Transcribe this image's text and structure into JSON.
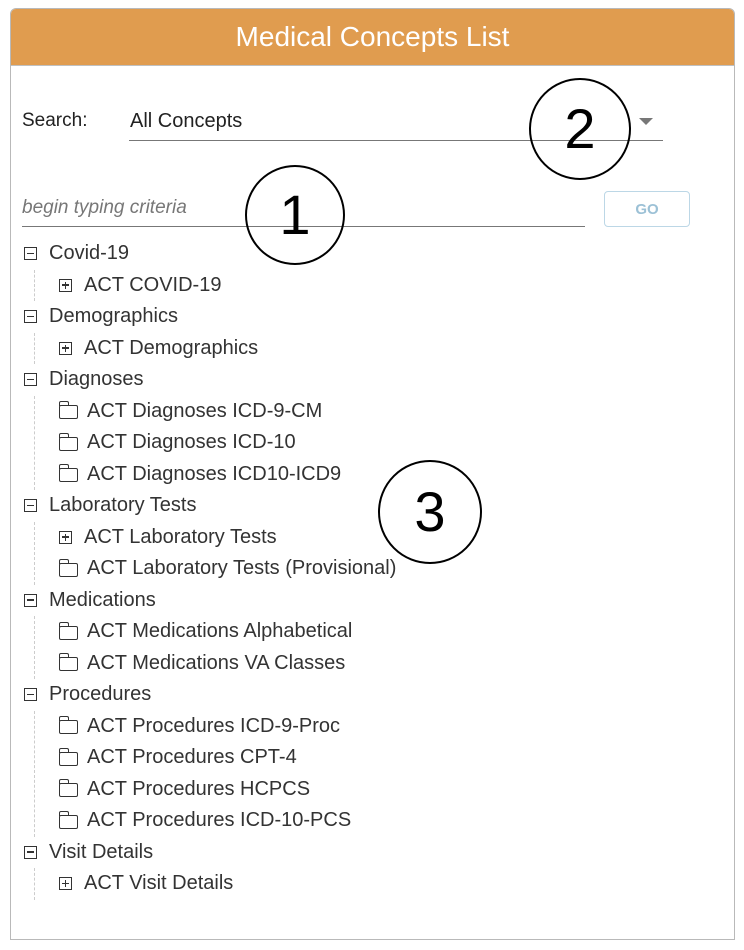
{
  "header": {
    "title": "Medical Concepts List"
  },
  "search": {
    "label": "Search:",
    "selected": "All Concepts",
    "placeholder": "begin typing criteria",
    "go_label": "GO"
  },
  "tree": [
    {
      "label": "Covid-19",
      "children": [
        {
          "label": "ACT COVID-19",
          "icon": "plus"
        }
      ]
    },
    {
      "label": "Demographics",
      "children": [
        {
          "label": "ACT Demographics",
          "icon": "plus"
        }
      ]
    },
    {
      "label": "Diagnoses",
      "children": [
        {
          "label": "ACT Diagnoses ICD-9-CM",
          "icon": "folder"
        },
        {
          "label": "ACT Diagnoses ICD-10",
          "icon": "folder"
        },
        {
          "label": "ACT Diagnoses ICD10-ICD9",
          "icon": "folder"
        }
      ]
    },
    {
      "label": "Laboratory Tests",
      "children": [
        {
          "label": "ACT Laboratory Tests",
          "icon": "plus"
        },
        {
          "label": "ACT Laboratory Tests (Provisional)",
          "icon": "folder"
        }
      ]
    },
    {
      "label": "Medications",
      "children": [
        {
          "label": "ACT Medications Alphabetical",
          "icon": "folder"
        },
        {
          "label": "ACT Medications VA Classes",
          "icon": "folder"
        }
      ]
    },
    {
      "label": "Procedures",
      "children": [
        {
          "label": "ACT Procedures ICD-9-Proc",
          "icon": "folder"
        },
        {
          "label": "ACT Procedures CPT-4",
          "icon": "folder"
        },
        {
          "label": "ACT Procedures HCPCS",
          "icon": "folder"
        },
        {
          "label": "ACT Procedures ICD-10-PCS",
          "icon": "folder"
        }
      ]
    },
    {
      "label": "Visit Details",
      "children": [
        {
          "label": "ACT Visit Details",
          "icon": "plus"
        }
      ]
    }
  ],
  "annotations": [
    "1",
    "2",
    "3"
  ],
  "colors": {
    "header": "#e09c4f",
    "go": "#9cc1d6"
  }
}
